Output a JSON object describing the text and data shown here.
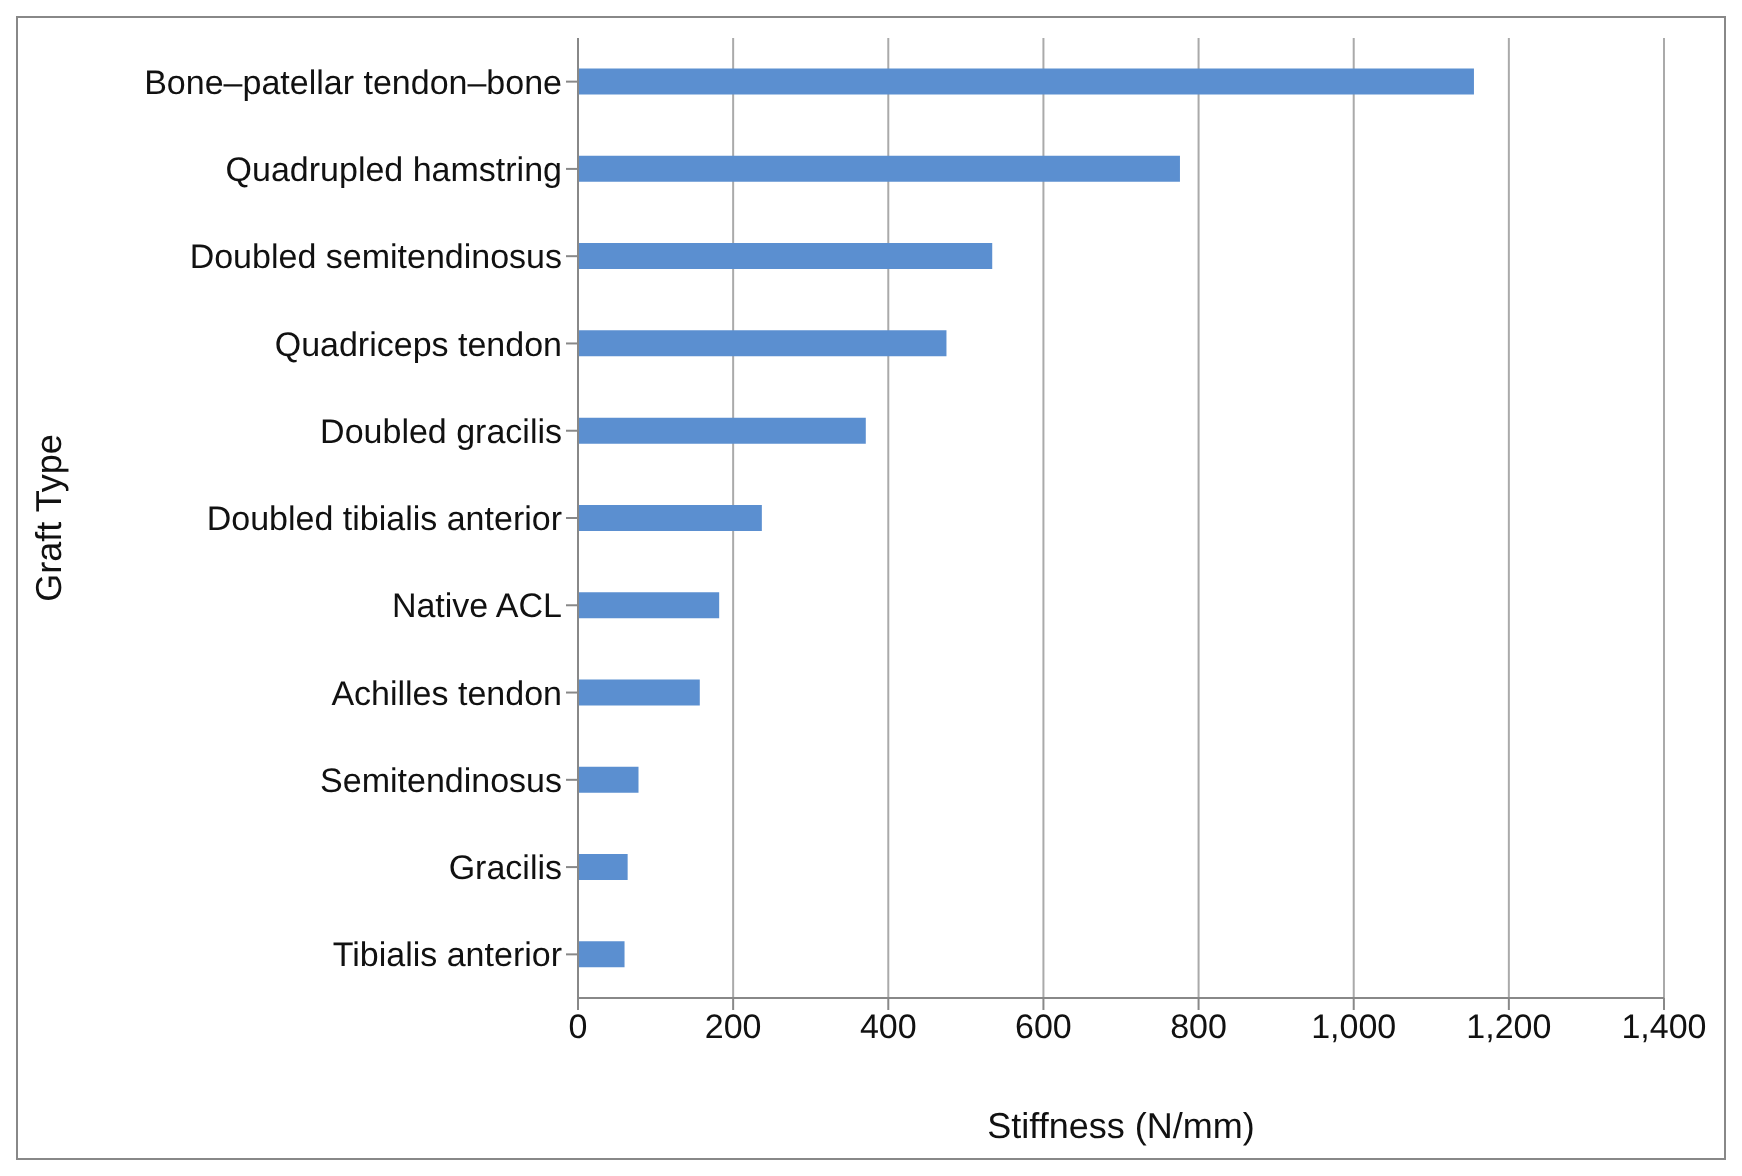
{
  "chart_data": {
    "type": "bar",
    "orientation": "horizontal",
    "xlabel": "Stiffness (N/mm)",
    "ylabel": "Graft Type",
    "categories": [
      "Bone–patellar tendon–bone",
      "Quadrupled hamstring",
      "Doubled semitendinosus",
      "Quadriceps tendon",
      "Doubled gracilis",
      "Doubled tibialis anterior",
      "Native ACL",
      "Achilles tendon",
      "Semitendinosus",
      "Gracilis",
      "Tibialis anterior"
    ],
    "values": [
      1155,
      776,
      534,
      475,
      371,
      237,
      182,
      157,
      78,
      64,
      60
    ],
    "color": "#5b8fd0",
    "xlim": [
      0,
      1400
    ],
    "xticks": [
      0,
      200,
      400,
      600,
      800,
      {
        "value": 1000,
        "label": "1,000"
      },
      {
        "value": 1200,
        "label": "1,200"
      },
      {
        "value": 1400,
        "label": "1,400"
      }
    ],
    "grid": "x"
  }
}
